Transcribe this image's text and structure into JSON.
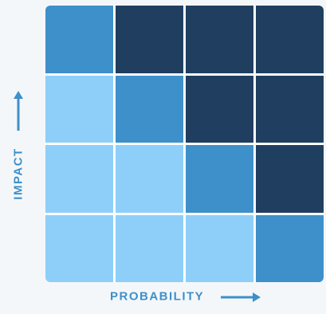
{
  "axes": {
    "x_label": "PROBABILITY",
    "y_label": "IMPACT"
  },
  "colors": {
    "light": "#8ecff9",
    "mid": "#3d90ca",
    "dark": "#203f60",
    "label": "#3d90ca",
    "background": "#f4f7fa"
  },
  "matrix": {
    "rows": [
      [
        "mid",
        "dark",
        "dark",
        "dark"
      ],
      [
        "light",
        "mid",
        "dark",
        "dark"
      ],
      [
        "light",
        "light",
        "mid",
        "dark"
      ],
      [
        "light",
        "light",
        "light",
        "mid"
      ]
    ]
  }
}
